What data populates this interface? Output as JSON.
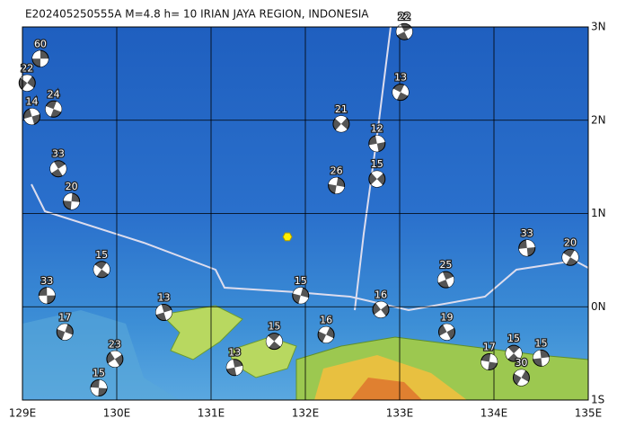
{
  "map": {
    "title": "E202405250555A M=4.8 h= 10 IRIAN JAYA REGION, INDONESIA",
    "xlim": [
      129,
      135
    ],
    "ylim": [
      -1,
      3
    ],
    "xticks": [
      {
        "value": 129,
        "label": "129E"
      },
      {
        "value": 130,
        "label": "130E"
      },
      {
        "value": 131,
        "label": "131E"
      },
      {
        "value": 132,
        "label": "132E"
      },
      {
        "value": 133,
        "label": "133E"
      },
      {
        "value": 134,
        "label": "134E"
      },
      {
        "value": 135,
        "label": "135E"
      }
    ],
    "yticks": [
      {
        "value": 3,
        "label": "3N"
      },
      {
        "value": 2,
        "label": "2N"
      },
      {
        "value": 1,
        "label": "1N"
      },
      {
        "value": 0,
        "label": "0N"
      },
      {
        "value": -1,
        "label": "1S"
      }
    ],
    "epicenter": {
      "lon": 131.81,
      "lat": 0.75
    },
    "events": [
      {
        "lon": 129.19,
        "lat": 2.66,
        "depth": 60
      },
      {
        "lon": 129.05,
        "lat": 2.4,
        "depth": 22
      },
      {
        "lon": 129.1,
        "lat": 2.04,
        "depth": 14
      },
      {
        "lon": 129.33,
        "lat": 2.12,
        "depth": 24
      },
      {
        "lon": 129.38,
        "lat": 1.48,
        "depth": 33
      },
      {
        "lon": 129.52,
        "lat": 1.13,
        "depth": 20
      },
      {
        "lon": 132.38,
        "lat": 1.96,
        "depth": 21
      },
      {
        "lon": 132.76,
        "lat": 1.75,
        "depth": 12
      },
      {
        "lon": 133.01,
        "lat": 2.3,
        "depth": 13
      },
      {
        "lon": 133.05,
        "lat": 2.95,
        "depth": 22
      },
      {
        "lon": 132.33,
        "lat": 1.3,
        "depth": 26
      },
      {
        "lon": 132.76,
        "lat": 1.37,
        "depth": 15
      },
      {
        "lon": 134.35,
        "lat": 0.63,
        "depth": 33
      },
      {
        "lon": 134.81,
        "lat": 0.53,
        "depth": 20
      },
      {
        "lon": 133.49,
        "lat": 0.29,
        "depth": 25
      },
      {
        "lon": 131.95,
        "lat": 0.12,
        "depth": 15
      },
      {
        "lon": 132.8,
        "lat": -0.03,
        "depth": 16
      },
      {
        "lon": 129.26,
        "lat": 0.12,
        "depth": 33
      },
      {
        "lon": 129.84,
        "lat": 0.4,
        "depth": 15
      },
      {
        "lon": 130.5,
        "lat": -0.06,
        "depth": 13
      },
      {
        "lon": 129.45,
        "lat": -0.27,
        "depth": 17
      },
      {
        "lon": 129.98,
        "lat": -0.56,
        "depth": 23
      },
      {
        "lon": 129.81,
        "lat": -0.87,
        "depth": 15
      },
      {
        "lon": 131.67,
        "lat": -0.37,
        "depth": 15
      },
      {
        "lon": 131.25,
        "lat": -0.65,
        "depth": 13
      },
      {
        "lon": 132.22,
        "lat": -0.3,
        "depth": 16
      },
      {
        "lon": 133.5,
        "lat": -0.27,
        "depth": 19
      },
      {
        "lon": 133.95,
        "lat": -0.59,
        "depth": 17
      },
      {
        "lon": 134.21,
        "lat": -0.5,
        "depth": 15
      },
      {
        "lon": 134.5,
        "lat": -0.55,
        "depth": 15
      },
      {
        "lon": 134.29,
        "lat": -0.76,
        "depth": 30
      }
    ]
  }
}
